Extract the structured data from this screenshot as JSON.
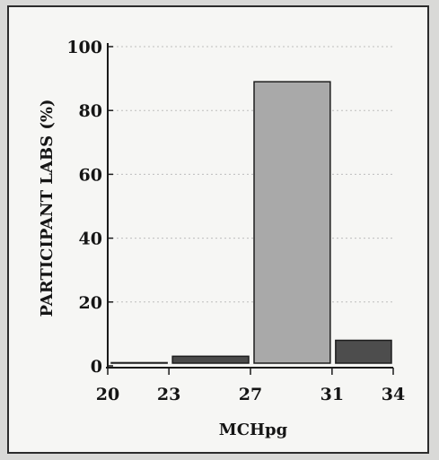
{
  "chart_data": {
    "type": "bar",
    "title": "",
    "xlabel": "MCHpg",
    "ylabel": "PARTICIPANT LABS (%)",
    "ylim": [
      0,
      100
    ],
    "yticks": [
      "0",
      "20",
      "40",
      "60",
      "80",
      "100"
    ],
    "xticks": [
      "20",
      "23",
      "27",
      "31",
      "34"
    ],
    "bins": [
      {
        "from": 20,
        "to": 23,
        "value": 1,
        "color": "#3f3f3f"
      },
      {
        "from": 23,
        "to": 27,
        "value": 3,
        "color": "#4a4a4a"
      },
      {
        "from": 27,
        "to": 31,
        "value": 89,
        "color": "#a9a9a9"
      },
      {
        "from": 31,
        "to": 34,
        "value": 8,
        "color": "#4d4d4d"
      }
    ],
    "grid": true,
    "legend": "none"
  }
}
